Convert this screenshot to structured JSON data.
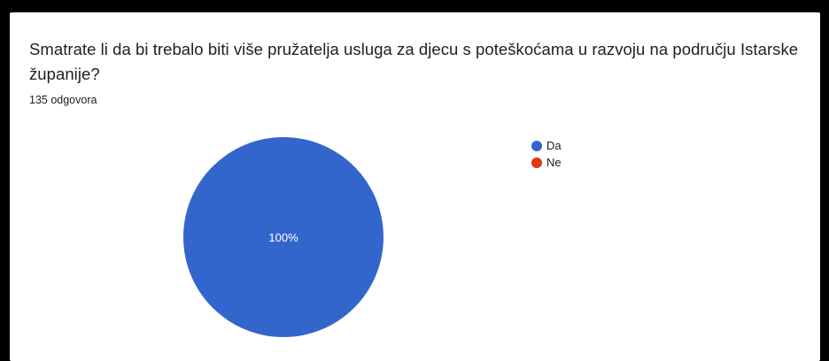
{
  "question": {
    "title": "Smatrate li da bi trebalo biti više pružatelja usluga za djecu s poteškoćama u razvoju na području Istarske županije?",
    "responses": "135 odgovora"
  },
  "chart_data": {
    "type": "pie",
    "categories": [
      "Da",
      "Ne"
    ],
    "values": [
      100,
      0
    ],
    "colors": [
      "#3366cc",
      "#dc3912"
    ],
    "data_labels": [
      "100%",
      ""
    ],
    "legend_position": "right"
  }
}
